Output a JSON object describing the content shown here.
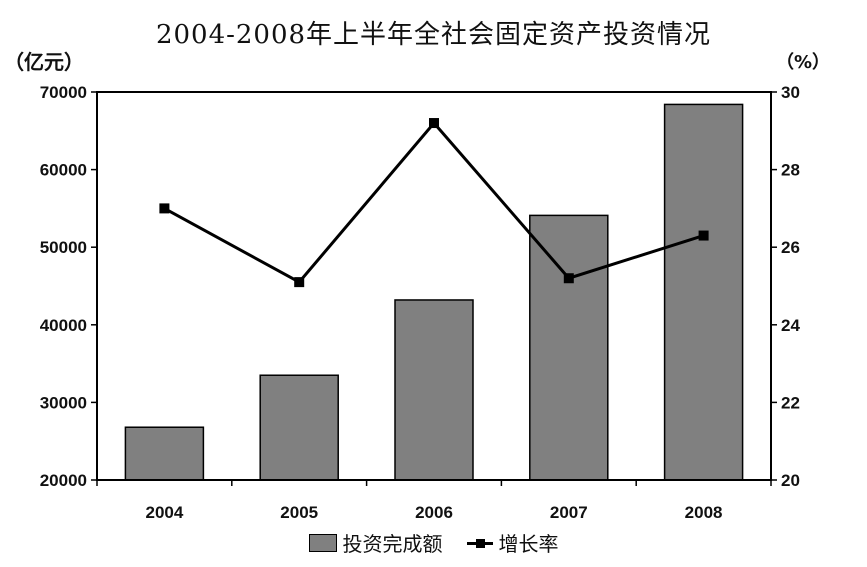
{
  "chart_data": {
    "type": "bar",
    "title": "2004-2008年上半年全社会固定资产投资情况",
    "y_unit_left": "（亿元）",
    "y_unit_right": "（%）",
    "categories": [
      "2004",
      "2005",
      "2006",
      "2007",
      "2008"
    ],
    "ylim": [
      20000,
      70000
    ],
    "y_ticks": [
      "20000",
      "30000",
      "40000",
      "50000",
      "60000",
      "70000"
    ],
    "y2lim": [
      20,
      30
    ],
    "y2_ticks": [
      "20",
      "22",
      "24",
      "26",
      "28",
      "30"
    ],
    "series": [
      {
        "name": "投资完成额",
        "type": "bar",
        "axis": "left",
        "color": "#808080",
        "values": [
          26800,
          33500,
          43200,
          54100,
          68400
        ]
      },
      {
        "name": "增长率",
        "type": "line",
        "axis": "right",
        "color": "#000000",
        "values": [
          27.0,
          25.1,
          29.2,
          25.2,
          26.3
        ]
      }
    ],
    "grid": false,
    "legend_position": "bottom"
  }
}
